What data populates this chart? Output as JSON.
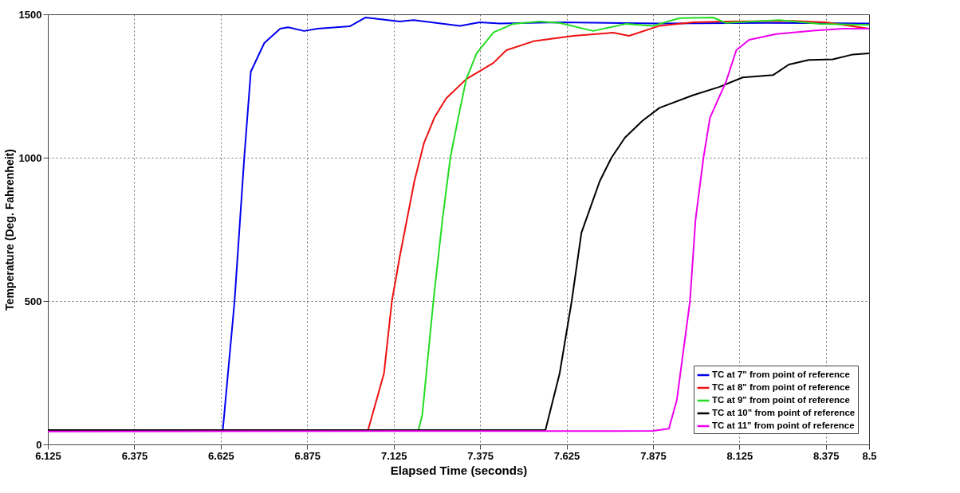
{
  "chart_data": {
    "type": "line",
    "xlabel": "Elapsed Time (seconds)",
    "ylabel": "Temperature (Deg. Fahrenheit)",
    "xlim": [
      6.125,
      8.5
    ],
    "ylim": [
      0,
      1500
    ],
    "xticks": [
      6.125,
      6.375,
      6.625,
      6.875,
      7.125,
      7.375,
      7.625,
      7.875,
      8.125,
      8.375,
      8.5
    ],
    "yticks": [
      0,
      500,
      1000,
      1500
    ],
    "grid": true,
    "legend": "bottom right",
    "series": [
      {
        "name": "TC at 7\" from point of reference",
        "color": "#0000ee",
        "x": [
          6.125,
          6.631,
          6.665,
          6.693,
          6.712,
          6.751,
          6.797,
          6.82,
          6.866,
          6.905,
          6.998,
          7.044,
          7.143,
          7.183,
          7.317,
          7.374,
          7.432,
          7.6,
          7.9,
          8.2,
          8.5
        ],
        "values": [
          50,
          50,
          500,
          1000,
          1300,
          1400,
          1450,
          1455,
          1442,
          1450,
          1458,
          1489,
          1475,
          1480,
          1460,
          1472,
          1468,
          1472,
          1468,
          1470,
          1468
        ]
      },
      {
        "name": "TC at 8\" from point of reference",
        "color": "#ee1111",
        "x": [
          6.125,
          7.051,
          7.097,
          7.12,
          7.143,
          7.185,
          7.213,
          7.243,
          7.277,
          7.335,
          7.414,
          7.451,
          7.529,
          7.645,
          7.76,
          7.806,
          7.894,
          7.991,
          8.086,
          8.28,
          8.375,
          8.5
        ],
        "values": [
          50,
          50,
          247,
          500,
          657,
          918,
          1052,
          1140,
          1207,
          1274,
          1331,
          1375,
          1406,
          1425,
          1436,
          1425,
          1460,
          1472,
          1475,
          1477,
          1472,
          1450
        ]
      },
      {
        "name": "TC at 9\" from point of reference",
        "color": "#22dd22",
        "x": [
          6.125,
          7.197,
          7.208,
          7.24,
          7.266,
          7.289,
          7.312,
          7.335,
          7.365,
          7.414,
          7.471,
          7.547,
          7.605,
          7.702,
          7.797,
          7.875,
          7.952,
          8.049,
          8.086,
          8.24,
          8.356,
          8.5
        ],
        "values": [
          50,
          50,
          105,
          500,
          783,
          1000,
          1140,
          1274,
          1364,
          1437,
          1467,
          1475,
          1470,
          1442,
          1467,
          1460,
          1487,
          1489,
          1470,
          1480,
          1467,
          1463
        ]
      },
      {
        "name": "TC at 10\" from point of reference",
        "color": "#000000",
        "x": [
          6.125,
          7.564,
          7.605,
          7.64,
          7.668,
          7.721,
          7.755,
          7.794,
          7.845,
          7.894,
          7.991,
          8.067,
          8.134,
          8.222,
          8.268,
          8.326,
          8.395,
          8.453,
          8.5
        ],
        "values": [
          50,
          50,
          247,
          500,
          738,
          918,
          1000,
          1070,
          1129,
          1174,
          1218,
          1247,
          1280,
          1288,
          1325,
          1341,
          1343,
          1360,
          1364
        ]
      },
      {
        "name": "TC at 11\" from point of reference",
        "color": "#ee00ee",
        "x": [
          6.125,
          7.875,
          7.921,
          7.944,
          7.982,
          7.998,
          8.021,
          8.04,
          8.086,
          8.116,
          8.153,
          8.231,
          8.326,
          8.424,
          8.5
        ],
        "values": [
          45,
          47,
          55,
          155,
          500,
          783,
          1000,
          1140,
          1264,
          1375,
          1411,
          1431,
          1442,
          1450,
          1450
        ]
      }
    ]
  }
}
